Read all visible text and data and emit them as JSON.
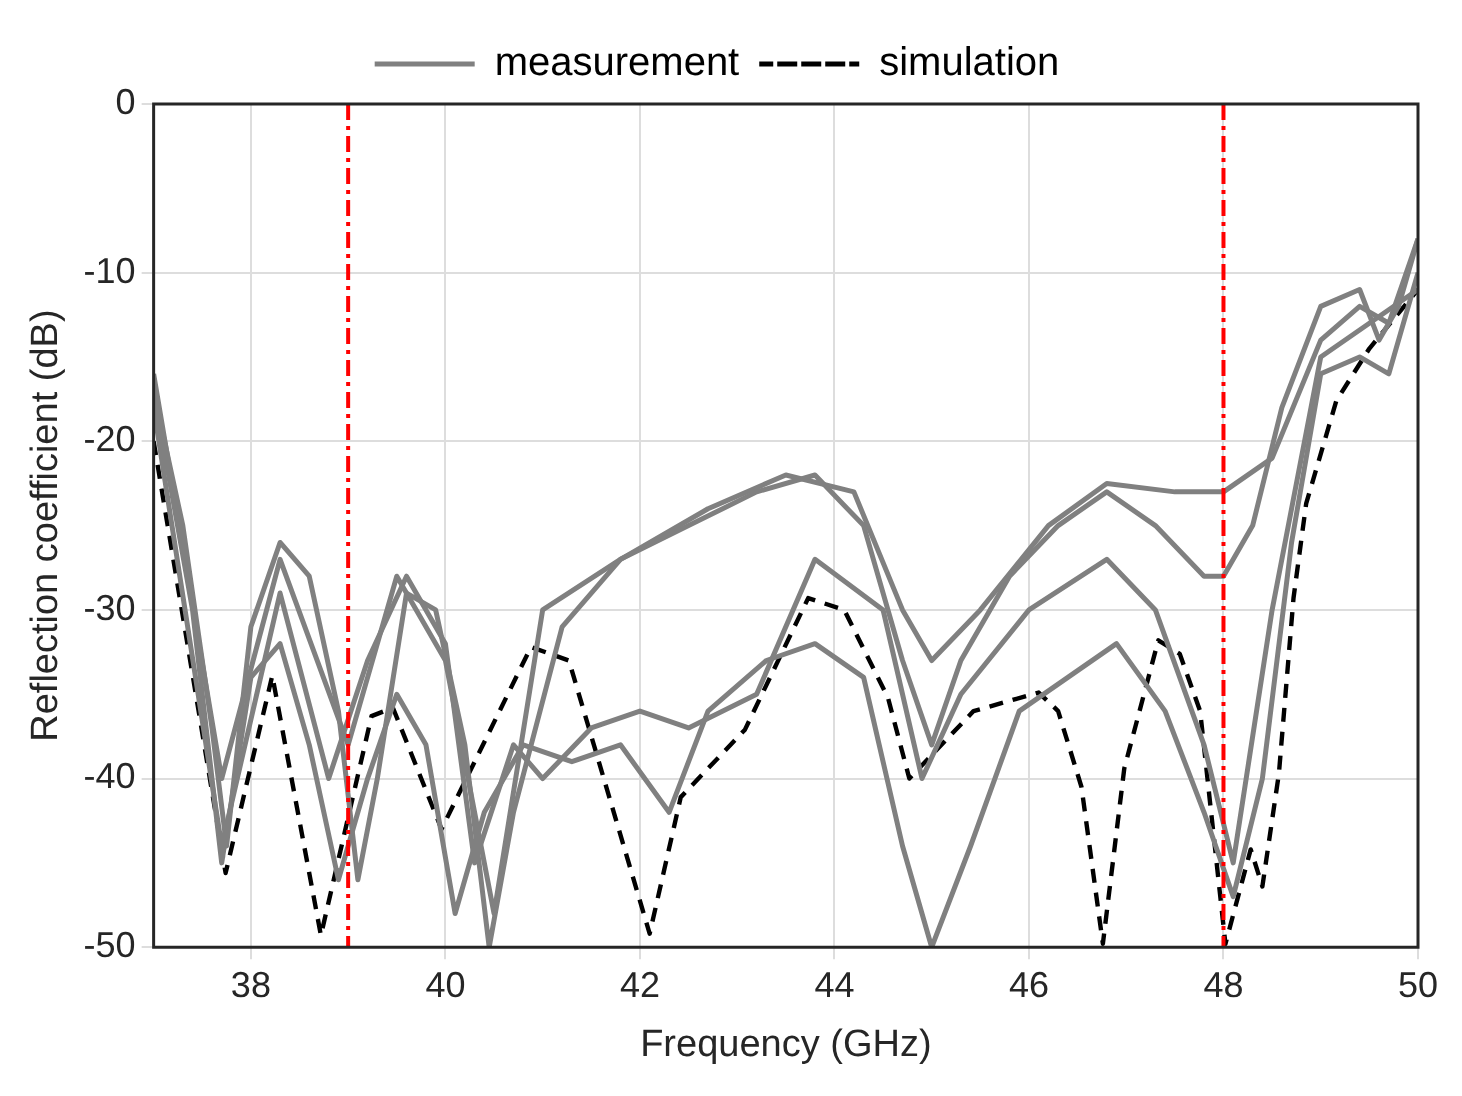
{
  "chart_data": {
    "type": "line",
    "xlabel": "Frequency (GHz)",
    "ylabel": "Reflection coefficient (dB)",
    "xlim": [
      37,
      50
    ],
    "xticks": [
      38,
      40,
      42,
      44,
      46,
      48,
      50
    ],
    "ylim": [
      -50,
      0
    ],
    "yticks": [
      -50,
      -40,
      -30,
      -20,
      -10,
      0
    ],
    "grid": true,
    "legend": "top",
    "marker": "none",
    "ref_lines": [
      {
        "axis": "x",
        "value": 39,
        "color": "#ff0000",
        "line_style": "dashdot"
      },
      {
        "axis": "x",
        "value": 48,
        "color": "#ff0000",
        "line_style": "dashdot"
      }
    ],
    "series": [
      {
        "name": "measurement",
        "color": "#808080",
        "line_style": "solid",
        "x": [
          37,
          37.3,
          37.6,
          37.75,
          38,
          38.3,
          38.6,
          38.9,
          39.1,
          39.3,
          39.6,
          39.9,
          40.2,
          40.45,
          40.7,
          41.2,
          41.8,
          42.5,
          43.2,
          43.8,
          44.3,
          44.7,
          45,
          45.3,
          45.8,
          46.3,
          46.8,
          47.3,
          47.8,
          48,
          48.3,
          48.6,
          49,
          49.4,
          49.6,
          49.8,
          50
        ],
        "values": [
          -17,
          -25,
          -37,
          -44,
          -31,
          -26,
          -28,
          -36,
          -46,
          -40,
          -29,
          -30,
          -38,
          -50,
          -42,
          -31,
          -27,
          -25,
          -23,
          -22,
          -25,
          -33,
          -38,
          -33,
          -28,
          -25,
          -23,
          -25,
          -28,
          -28,
          -25,
          -18,
          -12,
          -11,
          -14,
          -12,
          -8
        ]
      },
      {
        "color": "#808080",
        "line_style": "solid",
        "x": [
          37,
          37.4,
          37.7,
          38,
          38.3,
          38.6,
          38.9,
          39.2,
          39.5,
          39.8,
          40.1,
          40.4,
          40.8,
          41.3,
          41.8,
          42.3,
          42.7,
          43.3,
          43.8,
          44.3,
          44.7,
          45,
          45.4,
          45.9,
          46.4,
          46.9,
          47.4,
          47.8,
          48.1,
          48.4,
          48.7,
          49,
          49.4,
          49.7,
          50
        ],
        "values": [
          -17,
          -30,
          -45,
          -34,
          -32,
          -38,
          -46,
          -40,
          -35,
          -38,
          -48,
          -42,
          -38,
          -39,
          -38,
          -42,
          -36,
          -33,
          -32,
          -34,
          -44,
          -50,
          -44,
          -36,
          -34,
          -32,
          -36,
          -42,
          -47,
          -40,
          -26,
          -16,
          -15,
          -16,
          -10
        ]
      },
      {
        "color": "#808080",
        "line_style": "solid",
        "x": [
          37,
          37.7,
          38.3,
          39,
          39.5,
          40,
          40.5,
          41,
          41.8,
          42.7,
          43.5,
          44.2,
          44.7,
          45,
          45.5,
          46.2,
          46.8,
          47.5,
          48,
          48.5,
          49,
          49.4,
          49.7,
          50
        ],
        "values": [
          -16,
          -40,
          -27,
          -38,
          -28,
          -33,
          -48,
          -30,
          -27,
          -24,
          -22,
          -23,
          -30,
          -33,
          -30,
          -25,
          -22.5,
          -23,
          -23,
          -21,
          -14,
          -12,
          -13,
          -8
        ]
      },
      {
        "color": "#808080",
        "line_style": "solid",
        "x": [
          37,
          37.7,
          38.3,
          38.8,
          39.2,
          39.6,
          40,
          40.3,
          40.7,
          41,
          41.5,
          42,
          42.5,
          43.2,
          43.8,
          44.5,
          44.9,
          45.3,
          46,
          46.8,
          47.3,
          47.8,
          48.1,
          48.5,
          49,
          49.5,
          50
        ],
        "values": [
          -18,
          -44,
          -29,
          -40,
          -33,
          -28,
          -32,
          -45,
          -38,
          -40,
          -37,
          -36,
          -37,
          -35,
          -27,
          -30,
          -40,
          -35,
          -30,
          -27,
          -30,
          -38,
          -45,
          -30,
          -15,
          -13,
          -11
        ]
      },
      {
        "name": "simulation",
        "color": "#000000",
        "line_style": "dashed",
        "x": [
          37,
          37.74,
          38.22,
          38.72,
          39.24,
          39.46,
          39.96,
          40.88,
          41.27,
          42.1,
          42.42,
          43.08,
          43.73,
          44.1,
          44.55,
          44.77,
          45.43,
          46.1,
          46.3,
          46.54,
          46.76,
          46.98,
          47.33,
          47.55,
          47.76,
          48.02,
          48.28,
          48.4,
          48.57,
          48.72,
          48.85,
          49.16,
          49.5,
          50
        ],
        "values": [
          -20,
          -45.6,
          -33.9,
          -49.3,
          -36.3,
          -35.8,
          -43,
          -32.2,
          -33,
          -49.2,
          -41.1,
          -37.1,
          -29.3,
          -30,
          -35.2,
          -40,
          -36,
          -34.9,
          -36,
          -40.5,
          -49.8,
          -39.4,
          -31.8,
          -32.6,
          -36,
          -49.8,
          -44.2,
          -46.4,
          -39.7,
          -29.3,
          -23.7,
          -17.6,
          -14.5,
          -11
        ]
      }
    ]
  }
}
